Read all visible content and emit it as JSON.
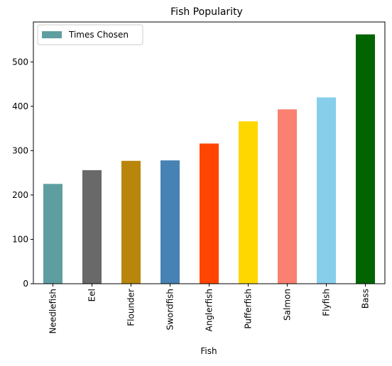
{
  "chart_data": {
    "type": "bar",
    "title": "Fish Popularity",
    "xlabel": "Fish",
    "ylabel": "",
    "categories": [
      "Needlefish",
      "Eel",
      "Flounder",
      "Swordfish",
      "Anglerfish",
      "Pufferfish",
      "Salmon",
      "Flyfish",
      "Bass"
    ],
    "series": [
      {
        "name": "Times Chosen",
        "values": [
          225,
          256,
          277,
          278,
          316,
          366,
          393,
          420,
          562
        ]
      }
    ],
    "bar_colors": [
      "#5f9ea0",
      "#696969",
      "#b8860b",
      "#4682b4",
      "#ff4500",
      "#ffd700",
      "#fa8072",
      "#87ceeb",
      "#006400"
    ],
    "legend_color": "#5f9ea0",
    "ylim": [
      0,
      590
    ],
    "yticks": [
      0,
      100,
      200,
      300,
      400,
      500
    ],
    "legend_position": "top-left",
    "grid": false
  }
}
